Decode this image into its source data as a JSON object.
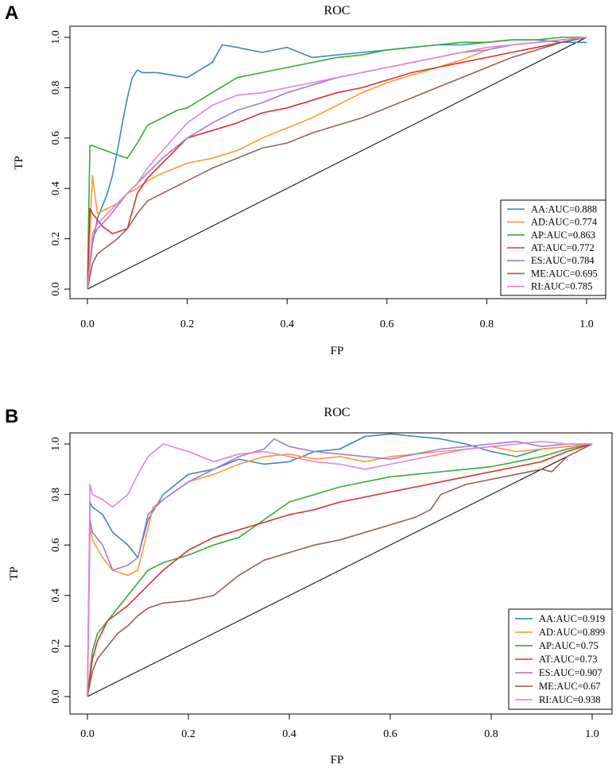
{
  "palette": {
    "AA": "#3a87c0",
    "AD": "#ff9a2e",
    "AP": "#3aa83a",
    "AT": "#d63333",
    "ES": "#9e7ed1",
    "ME": "#93645a",
    "RI": "#ea80d2"
  },
  "chart_data": [
    {
      "panel": "A",
      "type": "line",
      "title": "ROC",
      "xlabel": "FP",
      "ylabel": "TP",
      "xlim": [
        0,
        1
      ],
      "ylim": [
        0,
        1
      ],
      "xticks": [
        "0.0",
        "0.2",
        "0.4",
        "0.6",
        "0.8",
        "1.0"
      ],
      "yticks": [
        "0.0",
        "0.2",
        "0.4",
        "0.6",
        "0.8",
        "1.0"
      ],
      "grid": false,
      "legend_position": "bottom-right",
      "diagonal": true,
      "series": [
        {
          "name": "AA",
          "legend": "AA:AUC=0.888",
          "x": [
            0,
            0.01,
            0.02,
            0.03,
            0.04,
            0.05,
            0.06,
            0.07,
            0.08,
            0.09,
            0.1,
            0.11,
            0.14,
            0.2,
            0.25,
            0.27,
            0.3,
            0.35,
            0.4,
            0.45,
            0.5,
            0.55,
            0.6,
            0.65,
            0.7,
            0.75,
            0.8,
            0.85,
            0.9,
            0.95,
            1.0
          ],
          "y": [
            0,
            0.18,
            0.28,
            0.33,
            0.38,
            0.45,
            0.55,
            0.66,
            0.76,
            0.84,
            0.87,
            0.86,
            0.86,
            0.84,
            0.9,
            0.97,
            0.96,
            0.94,
            0.96,
            0.92,
            0.93,
            0.94,
            0.95,
            0.96,
            0.97,
            0.97,
            0.98,
            0.99,
            0.99,
            0.98,
            0.98
          ]
        },
        {
          "name": "AD",
          "legend": "AD:AUC=0.774",
          "x": [
            0,
            0.01,
            0.02,
            0.04,
            0.06,
            0.08,
            0.1,
            0.12,
            0.15,
            0.2,
            0.25,
            0.3,
            0.35,
            0.4,
            0.45,
            0.5,
            0.55,
            0.6,
            0.65,
            0.7,
            0.75,
            0.8,
            0.85,
            0.9,
            0.95,
            1.0
          ],
          "y": [
            0,
            0.45,
            0.3,
            0.32,
            0.34,
            0.38,
            0.4,
            0.43,
            0.46,
            0.5,
            0.52,
            0.55,
            0.6,
            0.64,
            0.68,
            0.73,
            0.78,
            0.82,
            0.85,
            0.88,
            0.91,
            0.95,
            0.97,
            0.98,
            0.99,
            1.0
          ]
        },
        {
          "name": "AP",
          "legend": "AP:AUC=0.863",
          "x": [
            0,
            0.005,
            0.01,
            0.05,
            0.08,
            0.1,
            0.12,
            0.15,
            0.18,
            0.2,
            0.25,
            0.3,
            0.35,
            0.4,
            0.45,
            0.5,
            0.55,
            0.6,
            0.65,
            0.7,
            0.75,
            0.8,
            0.85,
            0.9,
            0.95,
            1.0
          ],
          "y": [
            0,
            0.57,
            0.57,
            0.54,
            0.52,
            0.58,
            0.65,
            0.68,
            0.71,
            0.72,
            0.78,
            0.84,
            0.86,
            0.88,
            0.9,
            0.92,
            0.93,
            0.95,
            0.96,
            0.97,
            0.98,
            0.98,
            0.99,
            0.99,
            1.0,
            1.0
          ]
        },
        {
          "name": "AT",
          "legend": "AT:AUC=0.772",
          "x": [
            0,
            0.005,
            0.01,
            0.03,
            0.05,
            0.08,
            0.1,
            0.12,
            0.15,
            0.2,
            0.25,
            0.3,
            0.35,
            0.4,
            0.45,
            0.5,
            0.55,
            0.6,
            0.65,
            0.7,
            0.75,
            0.8,
            0.85,
            0.9,
            0.95,
            1.0
          ],
          "y": [
            0,
            0.32,
            0.3,
            0.25,
            0.22,
            0.24,
            0.38,
            0.44,
            0.5,
            0.6,
            0.63,
            0.66,
            0.7,
            0.72,
            0.75,
            0.78,
            0.8,
            0.83,
            0.86,
            0.88,
            0.9,
            0.92,
            0.94,
            0.96,
            0.98,
            1.0
          ]
        },
        {
          "name": "ES",
          "legend": "ES:AUC=0.784",
          "x": [
            0,
            0.01,
            0.02,
            0.04,
            0.06,
            0.08,
            0.1,
            0.12,
            0.15,
            0.2,
            0.25,
            0.3,
            0.35,
            0.4,
            0.45,
            0.5,
            0.55,
            0.6,
            0.65,
            0.7,
            0.75,
            0.8,
            0.85,
            0.9,
            0.95,
            1.0
          ],
          "y": [
            0,
            0.2,
            0.24,
            0.28,
            0.33,
            0.38,
            0.42,
            0.46,
            0.52,
            0.6,
            0.66,
            0.71,
            0.74,
            0.78,
            0.81,
            0.84,
            0.86,
            0.88,
            0.9,
            0.92,
            0.94,
            0.95,
            0.97,
            0.98,
            0.99,
            1.0
          ]
        },
        {
          "name": "ME",
          "legend": "ME:AUC=0.695",
          "x": [
            0,
            0.01,
            0.02,
            0.04,
            0.06,
            0.08,
            0.1,
            0.12,
            0.15,
            0.2,
            0.25,
            0.3,
            0.35,
            0.4,
            0.45,
            0.5,
            0.55,
            0.6,
            0.65,
            0.7,
            0.75,
            0.8,
            0.85,
            0.9,
            0.95,
            1.0
          ],
          "y": [
            0,
            0.1,
            0.14,
            0.17,
            0.2,
            0.24,
            0.3,
            0.35,
            0.38,
            0.43,
            0.48,
            0.52,
            0.56,
            0.58,
            0.62,
            0.65,
            0.68,
            0.72,
            0.76,
            0.8,
            0.84,
            0.88,
            0.92,
            0.95,
            0.98,
            1.0
          ]
        },
        {
          "name": "RI",
          "legend": "RI:AUC=0.785",
          "x": [
            0,
            0.01,
            0.02,
            0.04,
            0.06,
            0.08,
            0.1,
            0.12,
            0.15,
            0.2,
            0.25,
            0.3,
            0.35,
            0.4,
            0.45,
            0.5,
            0.55,
            0.6,
            0.65,
            0.7,
            0.75,
            0.8,
            0.85,
            0.9,
            0.95,
            1.0
          ],
          "y": [
            0,
            0.22,
            0.26,
            0.3,
            0.34,
            0.38,
            0.42,
            0.48,
            0.55,
            0.66,
            0.73,
            0.77,
            0.78,
            0.8,
            0.82,
            0.84,
            0.86,
            0.88,
            0.9,
            0.92,
            0.94,
            0.96,
            0.97,
            0.98,
            0.99,
            1.0
          ]
        }
      ]
    },
    {
      "panel": "B",
      "type": "line",
      "title": "ROC",
      "xlabel": "FP",
      "ylabel": "TP",
      "xlim": [
        0,
        1
      ],
      "ylim": [
        0,
        1
      ],
      "xticks": [
        "0.0",
        "0.2",
        "0.4",
        "0.6",
        "0.8",
        "1.0"
      ],
      "yticks": [
        "0.0",
        "0.2",
        "0.4",
        "0.6",
        "0.8",
        "1.0"
      ],
      "grid": false,
      "legend_position": "bottom-right",
      "diagonal": true,
      "series": [
        {
          "name": "AA",
          "legend": "AA:AUC=0.919",
          "x": [
            0,
            0.005,
            0.01,
            0.03,
            0.05,
            0.08,
            0.1,
            0.12,
            0.15,
            0.2,
            0.25,
            0.3,
            0.35,
            0.4,
            0.45,
            0.5,
            0.55,
            0.6,
            0.65,
            0.7,
            0.75,
            0.8,
            0.85,
            0.9,
            0.95,
            1.0
          ],
          "y": [
            0,
            0.77,
            0.75,
            0.72,
            0.65,
            0.6,
            0.55,
            0.7,
            0.8,
            0.88,
            0.9,
            0.94,
            0.92,
            0.93,
            0.97,
            0.98,
            1.03,
            1.04,
            1.03,
            1.02,
            1.0,
            0.97,
            0.95,
            0.98,
            0.99,
            1.0
          ]
        },
        {
          "name": "AD",
          "legend": "AD:AUC=0.899",
          "x": [
            0,
            0.005,
            0.01,
            0.03,
            0.05,
            0.08,
            0.1,
            0.13,
            0.15,
            0.2,
            0.25,
            0.3,
            0.35,
            0.4,
            0.45,
            0.5,
            0.55,
            0.6,
            0.65,
            0.7,
            0.75,
            0.8,
            0.85,
            0.9,
            0.95,
            1.0
          ],
          "y": [
            0,
            0.67,
            0.62,
            0.55,
            0.5,
            0.48,
            0.5,
            0.75,
            0.78,
            0.85,
            0.88,
            0.92,
            0.95,
            0.96,
            0.94,
            0.95,
            0.93,
            0.95,
            0.96,
            0.97,
            0.98,
            0.99,
            0.97,
            0.98,
            0.99,
            1.0
          ]
        },
        {
          "name": "AP",
          "legend": "AP:AUC=0.75",
          "x": [
            0,
            0.01,
            0.02,
            0.04,
            0.06,
            0.08,
            0.1,
            0.12,
            0.15,
            0.2,
            0.25,
            0.3,
            0.35,
            0.4,
            0.45,
            0.5,
            0.55,
            0.6,
            0.65,
            0.7,
            0.75,
            0.8,
            0.85,
            0.9,
            0.95,
            1.0
          ],
          "y": [
            0,
            0.18,
            0.25,
            0.3,
            0.35,
            0.4,
            0.45,
            0.5,
            0.53,
            0.56,
            0.6,
            0.63,
            0.7,
            0.77,
            0.8,
            0.83,
            0.85,
            0.87,
            0.88,
            0.89,
            0.9,
            0.91,
            0.93,
            0.95,
            0.98,
            1.0
          ]
        },
        {
          "name": "AT",
          "legend": "AT:AUC=0.73",
          "x": [
            0,
            0.01,
            0.02,
            0.04,
            0.06,
            0.08,
            0.1,
            0.12,
            0.15,
            0.2,
            0.25,
            0.3,
            0.35,
            0.4,
            0.45,
            0.5,
            0.55,
            0.6,
            0.65,
            0.7,
            0.75,
            0.8,
            0.85,
            0.9,
            0.95,
            1.0
          ],
          "y": [
            0,
            0.15,
            0.22,
            0.3,
            0.33,
            0.36,
            0.4,
            0.44,
            0.5,
            0.58,
            0.63,
            0.66,
            0.69,
            0.72,
            0.74,
            0.77,
            0.79,
            0.81,
            0.83,
            0.85,
            0.87,
            0.89,
            0.91,
            0.93,
            0.97,
            1.0
          ]
        },
        {
          "name": "ES",
          "legend": "ES:AUC=0.907",
          "x": [
            0,
            0.005,
            0.01,
            0.03,
            0.05,
            0.08,
            0.1,
            0.12,
            0.15,
            0.2,
            0.25,
            0.3,
            0.35,
            0.37,
            0.4,
            0.45,
            0.5,
            0.55,
            0.6,
            0.65,
            0.7,
            0.75,
            0.8,
            0.85,
            0.9,
            0.95,
            1.0
          ],
          "y": [
            0,
            0.7,
            0.65,
            0.6,
            0.5,
            0.52,
            0.55,
            0.72,
            0.78,
            0.85,
            0.9,
            0.95,
            0.98,
            1.02,
            0.99,
            0.97,
            0.96,
            0.95,
            0.94,
            0.96,
            0.98,
            0.99,
            1.0,
            1.01,
            0.99,
            1.0,
            1.0
          ]
        },
        {
          "name": "ME",
          "legend": "ME:AUC=0.67",
          "x": [
            0,
            0.01,
            0.02,
            0.04,
            0.06,
            0.08,
            0.1,
            0.12,
            0.15,
            0.2,
            0.25,
            0.3,
            0.35,
            0.4,
            0.45,
            0.5,
            0.55,
            0.6,
            0.65,
            0.68,
            0.7,
            0.75,
            0.8,
            0.85,
            0.9,
            0.92,
            0.95,
            1.0
          ],
          "y": [
            0,
            0.1,
            0.15,
            0.2,
            0.25,
            0.28,
            0.32,
            0.35,
            0.37,
            0.38,
            0.4,
            0.48,
            0.54,
            0.57,
            0.6,
            0.62,
            0.65,
            0.68,
            0.71,
            0.74,
            0.8,
            0.84,
            0.86,
            0.88,
            0.9,
            0.89,
            0.95,
            1.0
          ]
        },
        {
          "name": "RI",
          "legend": "RI:AUC=0.938",
          "x": [
            0,
            0.005,
            0.01,
            0.03,
            0.05,
            0.08,
            0.1,
            0.12,
            0.15,
            0.2,
            0.25,
            0.3,
            0.35,
            0.4,
            0.45,
            0.5,
            0.55,
            0.6,
            0.65,
            0.7,
            0.75,
            0.8,
            0.85,
            0.9,
            0.95,
            1.0
          ],
          "y": [
            0,
            0.84,
            0.8,
            0.78,
            0.75,
            0.8,
            0.88,
            0.95,
            1.0,
            0.97,
            0.93,
            0.96,
            0.97,
            0.95,
            0.93,
            0.92,
            0.9,
            0.92,
            0.94,
            0.96,
            0.98,
            0.99,
            1.0,
            1.01,
            1.0,
            1.0
          ]
        }
      ]
    }
  ]
}
